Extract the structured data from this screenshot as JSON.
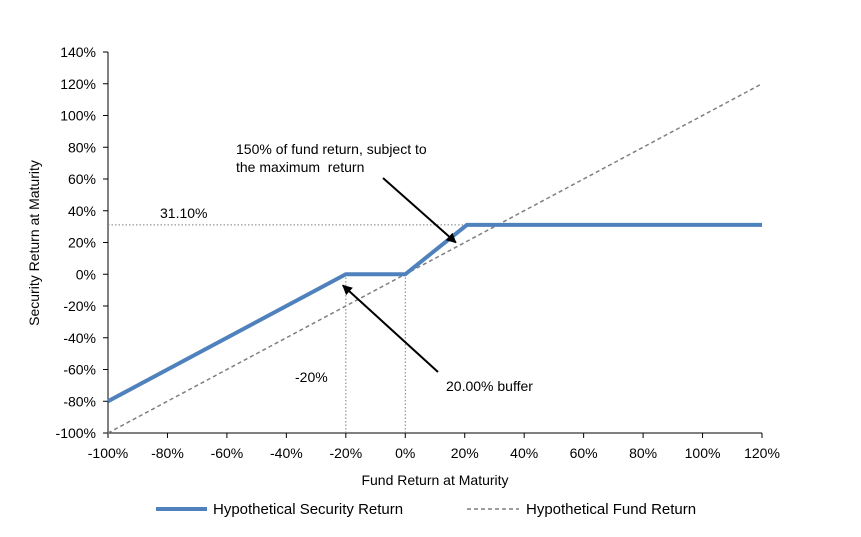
{
  "chart_data": {
    "type": "line",
    "title": "",
    "xlabel": "Fund Return at Maturity",
    "ylabel": "Security Return at Maturity",
    "xlim": [
      -100,
      120
    ],
    "ylim": [
      -100,
      140
    ],
    "x_ticks": [
      -100,
      -80,
      -60,
      -40,
      -20,
      0,
      20,
      40,
      60,
      80,
      100,
      120
    ],
    "y_ticks": [
      -100,
      -80,
      -60,
      -40,
      -20,
      0,
      20,
      40,
      60,
      80,
      100,
      120,
      140
    ],
    "x_tick_labels": [
      "-100%",
      "-80%",
      "-60%",
      "-40%",
      "-20%",
      "0%",
      "20%",
      "40%",
      "60%",
      "80%",
      "100%",
      "120%"
    ],
    "y_tick_labels": [
      "-100%",
      "-80%",
      "-60%",
      "-40%",
      "-20%",
      "0%",
      "20%",
      "40%",
      "60%",
      "80%",
      "100%",
      "120%",
      "140%"
    ],
    "series": [
      {
        "name": "Hypothetical Security Return",
        "style": "solid",
        "color": "#4f81bd",
        "x": [
          -100,
          -20,
          0,
          20.73,
          120
        ],
        "y": [
          -80,
          0,
          0,
          31.1,
          31.1
        ]
      },
      {
        "name": "Hypothetical Fund Return",
        "style": "dashed",
        "color": "#7f7f7f",
        "x": [
          -100,
          120
        ],
        "y": [
          -100,
          120
        ]
      }
    ],
    "reference_lines": [
      {
        "kind": "horizontal",
        "y": 31.1,
        "x_from": -100,
        "x_to": 20.73
      },
      {
        "kind": "vertical",
        "x": -20,
        "y_from": -100,
        "y_to": 0
      },
      {
        "kind": "vertical",
        "x": 0,
        "y_from": -100,
        "y_to": 0
      }
    ],
    "annotations": {
      "cap_value": "31.10%",
      "participation_line1": "150% of fund return, subject to",
      "participation_line2": "the maximum  return",
      "buffer_label": "20.00% buffer",
      "buffer_level": "-20%"
    },
    "arrow_targets": [
      {
        "x": 17,
        "y": 20
      },
      {
        "x": -21,
        "y": -7
      }
    ],
    "legend_position": "bottom"
  }
}
